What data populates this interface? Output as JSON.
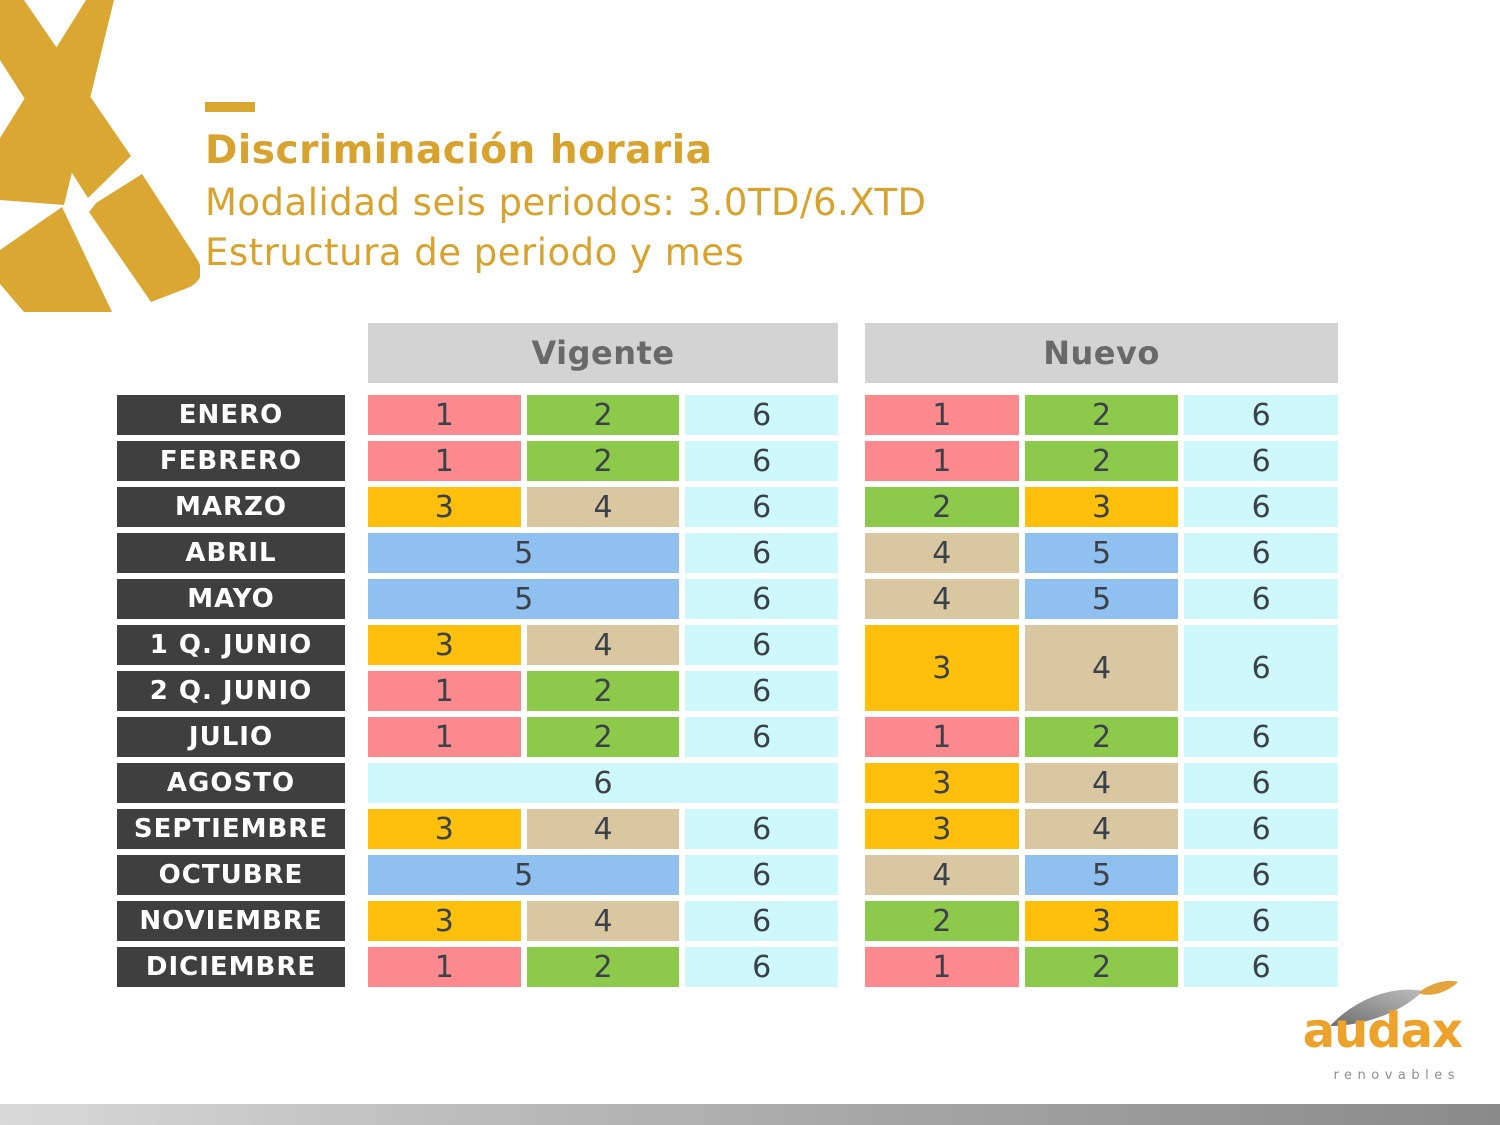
{
  "header": {
    "title": "Discriminación horaria",
    "subtitle": "Modalidad seis periodos: 3.0TD/6.XTD",
    "subtitle2": "Estructura de periodo y mes"
  },
  "colors": {
    "gold": "#D9A62F",
    "month_bg": "#3F3F3F",
    "header_bg": "#D3D3D3",
    "header_text": "#696969",
    "cell_text": "#3A4149",
    "p1": "#FB898E",
    "p2": "#8DCA4C",
    "p3": "#FEC00D",
    "p4": "#D9C7A1",
    "p5": "#90C0F0",
    "p6": "#CEF8FB"
  },
  "months": [
    "ENERO",
    "FEBRERO",
    "MARZO",
    "ABRIL",
    "MAYO",
    "1 Q. JUNIO",
    "2 Q. JUNIO",
    "JULIO",
    "AGOSTO",
    "SEPTIEMBRE",
    "OCTUBRE",
    "NOVIEMBRE",
    "DICIEMBRE"
  ],
  "tables": [
    {
      "id": "vigente",
      "header": "Vigente",
      "rows": [
        {
          "month": "ENERO",
          "cells": [
            {
              "v": "1",
              "p": "1"
            },
            {
              "v": "2",
              "p": "2"
            },
            {
              "v": "6",
              "p": "6"
            }
          ]
        },
        {
          "month": "FEBRERO",
          "cells": [
            {
              "v": "1",
              "p": "1"
            },
            {
              "v": "2",
              "p": "2"
            },
            {
              "v": "6",
              "p": "6"
            }
          ]
        },
        {
          "month": "MARZO",
          "cells": [
            {
              "v": "3",
              "p": "3"
            },
            {
              "v": "4",
              "p": "4"
            },
            {
              "v": "6",
              "p": "6"
            }
          ]
        },
        {
          "month": "ABRIL",
          "cells": [
            {
              "v": "5",
              "p": "5",
              "colspan": 2
            },
            {
              "v": "6",
              "p": "6"
            }
          ]
        },
        {
          "month": "MAYO",
          "cells": [
            {
              "v": "5",
              "p": "5",
              "colspan": 2
            },
            {
              "v": "6",
              "p": "6"
            }
          ]
        },
        {
          "month": "1 Q. JUNIO",
          "cells": [
            {
              "v": "3",
              "p": "3"
            },
            {
              "v": "4",
              "p": "4"
            },
            {
              "v": "6",
              "p": "6"
            }
          ]
        },
        {
          "month": "2 Q. JUNIO",
          "cells": [
            {
              "v": "1",
              "p": "1"
            },
            {
              "v": "2",
              "p": "2"
            },
            {
              "v": "6",
              "p": "6"
            }
          ]
        },
        {
          "month": "JULIO",
          "cells": [
            {
              "v": "1",
              "p": "1"
            },
            {
              "v": "2",
              "p": "2"
            },
            {
              "v": "6",
              "p": "6"
            }
          ]
        },
        {
          "month": "AGOSTO",
          "cells": [
            {
              "v": "6",
              "p": "6",
              "colspan": 3
            }
          ]
        },
        {
          "month": "SEPTIEMBRE",
          "cells": [
            {
              "v": "3",
              "p": "3"
            },
            {
              "v": "4",
              "p": "4"
            },
            {
              "v": "6",
              "p": "6"
            }
          ]
        },
        {
          "month": "OCTUBRE",
          "cells": [
            {
              "v": "5",
              "p": "5",
              "colspan": 2
            },
            {
              "v": "6",
              "p": "6"
            }
          ]
        },
        {
          "month": "NOVIEMBRE",
          "cells": [
            {
              "v": "3",
              "p": "3"
            },
            {
              "v": "4",
              "p": "4"
            },
            {
              "v": "6",
              "p": "6"
            }
          ]
        },
        {
          "month": "DICIEMBRE",
          "cells": [
            {
              "v": "1",
              "p": "1"
            },
            {
              "v": "2",
              "p": "2"
            },
            {
              "v": "6",
              "p": "6"
            }
          ]
        }
      ]
    },
    {
      "id": "nuevo",
      "header": "Nuevo",
      "rows": [
        {
          "month": "ENERO",
          "cells": [
            {
              "v": "1",
              "p": "1"
            },
            {
              "v": "2",
              "p": "2"
            },
            {
              "v": "6",
              "p": "6"
            }
          ]
        },
        {
          "month": "FEBRERO",
          "cells": [
            {
              "v": "1",
              "p": "1"
            },
            {
              "v": "2",
              "p": "2"
            },
            {
              "v": "6",
              "p": "6"
            }
          ]
        },
        {
          "month": "MARZO",
          "cells": [
            {
              "v": "2",
              "p": "2"
            },
            {
              "v": "3",
              "p": "3"
            },
            {
              "v": "6",
              "p": "6"
            }
          ]
        },
        {
          "month": "ABRIL",
          "cells": [
            {
              "v": "4",
              "p": "4"
            },
            {
              "v": "5",
              "p": "5"
            },
            {
              "v": "6",
              "p": "6"
            }
          ]
        },
        {
          "month": "MAYO",
          "cells": [
            {
              "v": "4",
              "p": "4"
            },
            {
              "v": "5",
              "p": "5"
            },
            {
              "v": "6",
              "p": "6"
            }
          ]
        },
        {
          "month": "JUNIO",
          "cells": [
            {
              "v": "3",
              "p": "3",
              "rowspan": 2
            },
            {
              "v": "4",
              "p": "4",
              "rowspan": 2
            },
            {
              "v": "6",
              "p": "6",
              "rowspan": 2
            }
          ]
        },
        {
          "month": "2 Q. JUNIO",
          "cells": []
        },
        {
          "month": "JULIO",
          "cells": [
            {
              "v": "1",
              "p": "1"
            },
            {
              "v": "2",
              "p": "2"
            },
            {
              "v": "6",
              "p": "6"
            }
          ]
        },
        {
          "month": "AGOSTO",
          "cells": [
            {
              "v": "3",
              "p": "3"
            },
            {
              "v": "4",
              "p": "4"
            },
            {
              "v": "6",
              "p": "6"
            }
          ]
        },
        {
          "month": "SEPTIEMBRE",
          "cells": [
            {
              "v": "3",
              "p": "3"
            },
            {
              "v": "4",
              "p": "4"
            },
            {
              "v": "6",
              "p": "6"
            }
          ]
        },
        {
          "month": "OCTUBRE",
          "cells": [
            {
              "v": "4",
              "p": "4"
            },
            {
              "v": "5",
              "p": "5"
            },
            {
              "v": "6",
              "p": "6"
            }
          ]
        },
        {
          "month": "NOVIEMBRE",
          "cells": [
            {
              "v": "2",
              "p": "2"
            },
            {
              "v": "3",
              "p": "3"
            },
            {
              "v": "6",
              "p": "6"
            }
          ]
        },
        {
          "month": "DICIEMBRE",
          "cells": [
            {
              "v": "1",
              "p": "1"
            },
            {
              "v": "2",
              "p": "2"
            },
            {
              "v": "6",
              "p": "6"
            }
          ]
        }
      ]
    }
  ],
  "logo": {
    "brand": "audax",
    "tagline": "renovables"
  }
}
